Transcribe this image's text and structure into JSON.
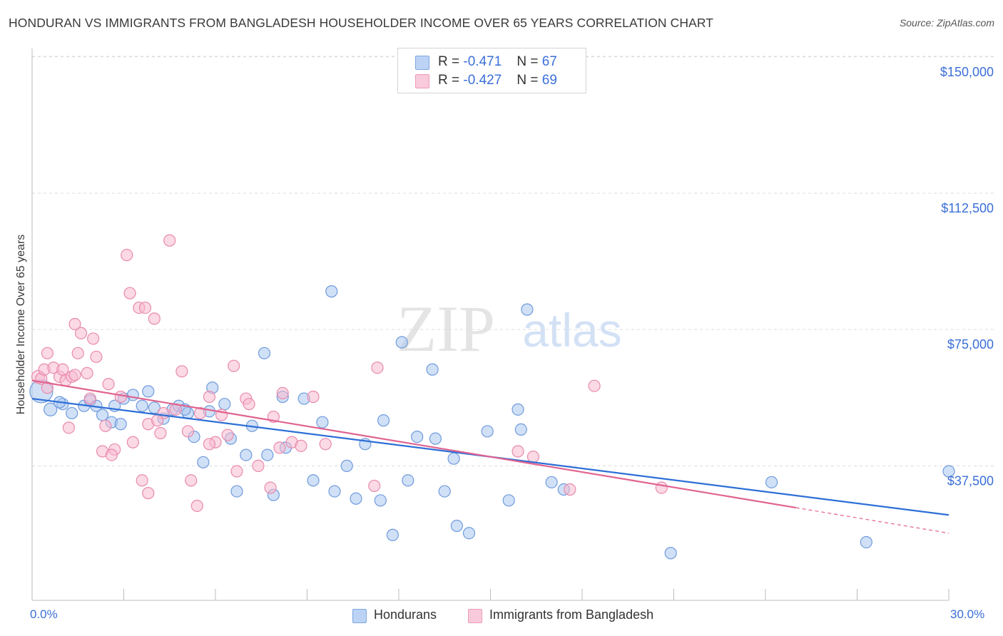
{
  "title": "HONDURAN VS IMMIGRANTS FROM BANGLADESH HOUSEHOLDER INCOME OVER 65 YEARS CORRELATION CHART",
  "source": "Source: ZipAtlas.com",
  "watermark": {
    "zip": "ZIP",
    "atlas": "atlas"
  },
  "colors": {
    "blue_fill": "#a9c6f0",
    "blue_stroke": "#6f9bdc",
    "blue_line": "#2d6fd6",
    "pink_fill": "#f7b9cf",
    "pink_stroke": "#e88aad",
    "pink_line": "#e0628f",
    "grid": "#dcdcdc",
    "tick_text": "#3a6fd8"
  },
  "legend": {
    "rows": [
      {
        "r_label": "R =",
        "r_value": "-0.471",
        "n_label": "N =",
        "n_value": "67"
      },
      {
        "r_label": "R =",
        "r_value": "-0.427",
        "n_label": "N =",
        "n_value": "69"
      }
    ]
  },
  "chart_data": {
    "type": "scatter",
    "title": "HONDURAN VS IMMIGRANTS FROM BANGLADESH HOUSEHOLDER INCOME OVER 65 YEARS CORRELATION CHART",
    "xlabel": "",
    "ylabel": "Householder Income Over 65 years",
    "xlim": [
      0,
      30
    ],
    "ylim": [
      6000,
      160000
    ],
    "x_tick_labels": [
      "0.0%",
      "30.0%"
    ],
    "y_ticks": [
      37500,
      75000,
      112500,
      150000
    ],
    "y_tick_labels": [
      "$37,500",
      "$75,000",
      "$112,500",
      "$150,000"
    ],
    "grid": true,
    "legend_position": "top-center",
    "series": [
      {
        "name": "Hondurans",
        "color": "#a9c6f0",
        "trend": {
          "x": [
            0,
            30
          ],
          "y": [
            56000,
            24000
          ]
        },
        "points": [
          [
            0.3,
            58000,
            16
          ],
          [
            0.6,
            53000,
            9
          ],
          [
            1.0,
            54500,
            8
          ],
          [
            1.3,
            52000,
            8
          ],
          [
            1.7,
            54000,
            8
          ],
          [
            1.9,
            55500,
            8
          ],
          [
            2.1,
            54000,
            8
          ],
          [
            2.3,
            51500,
            8
          ],
          [
            2.6,
            49500,
            8
          ],
          [
            2.9,
            49000,
            8
          ],
          [
            3.0,
            56000,
            8
          ],
          [
            3.3,
            57000,
            8
          ],
          [
            3.6,
            54000,
            8
          ],
          [
            3.8,
            58000,
            8
          ],
          [
            4.0,
            53500,
            8
          ],
          [
            4.3,
            50500,
            8
          ],
          [
            4.6,
            53000,
            8
          ],
          [
            4.8,
            54000,
            8
          ],
          [
            5.1,
            52000,
            8
          ],
          [
            5.3,
            45500,
            8
          ],
          [
            5.6,
            38500,
            8
          ],
          [
            5.8,
            52500,
            8
          ],
          [
            5.9,
            59000,
            8
          ],
          [
            6.3,
            54500,
            8
          ],
          [
            6.5,
            45000,
            8
          ],
          [
            6.7,
            30500,
            8
          ],
          [
            7.0,
            40500,
            8
          ],
          [
            7.2,
            48500,
            8
          ],
          [
            7.6,
            68500,
            8
          ],
          [
            7.7,
            40500,
            8
          ],
          [
            7.9,
            29500,
            8
          ],
          [
            8.2,
            56500,
            8
          ],
          [
            8.3,
            42500,
            8
          ],
          [
            8.9,
            56000,
            8
          ],
          [
            9.2,
            33500,
            8
          ],
          [
            9.5,
            49500,
            8
          ],
          [
            9.8,
            85500,
            8
          ],
          [
            9.9,
            30500,
            8
          ],
          [
            10.3,
            37500,
            8
          ],
          [
            10.6,
            28500,
            8
          ],
          [
            10.9,
            43500,
            8
          ],
          [
            11.4,
            28000,
            8
          ],
          [
            11.5,
            50000,
            8
          ],
          [
            11.8,
            18500,
            8
          ],
          [
            12.1,
            71500,
            8
          ],
          [
            12.3,
            33500,
            8
          ],
          [
            12.6,
            45500,
            8
          ],
          [
            13.1,
            64000,
            8
          ],
          [
            13.2,
            45000,
            8
          ],
          [
            13.5,
            30500,
            8
          ],
          [
            13.8,
            39500,
            8
          ],
          [
            13.9,
            21000,
            8
          ],
          [
            14.3,
            19000,
            8
          ],
          [
            14.9,
            47000,
            8
          ],
          [
            15.6,
            28000,
            8
          ],
          [
            15.9,
            53000,
            8
          ],
          [
            16.0,
            47500,
            8
          ],
          [
            16.2,
            80500,
            8
          ],
          [
            17.0,
            33000,
            8
          ],
          [
            17.4,
            31000,
            8
          ],
          [
            20.9,
            13500,
            8
          ],
          [
            24.2,
            33000,
            8
          ],
          [
            27.3,
            16500,
            8
          ],
          [
            30.0,
            36000,
            8
          ],
          [
            0.9,
            55000,
            8
          ],
          [
            2.7,
            54000,
            8
          ],
          [
            5.0,
            53000,
            8
          ]
        ]
      },
      {
        "name": "Immigrants from Bangladesh",
        "color": "#f7b9cf",
        "trend": {
          "x": [
            0,
            25
          ],
          "y": [
            61000,
            26000
          ]
        },
        "trend_dashed": {
          "x": [
            25,
            30
          ],
          "y": [
            26000,
            19000
          ]
        },
        "points": [
          [
            0.2,
            62000,
            9
          ],
          [
            0.3,
            61500,
            8
          ],
          [
            0.4,
            64000,
            8
          ],
          [
            0.5,
            68500,
            8
          ],
          [
            0.5,
            59000,
            8
          ],
          [
            0.7,
            64500,
            8
          ],
          [
            0.9,
            62000,
            8
          ],
          [
            1.0,
            64000,
            8
          ],
          [
            1.1,
            61000,
            8
          ],
          [
            1.2,
            48000,
            8
          ],
          [
            1.3,
            62000,
            8
          ],
          [
            1.4,
            62500,
            8
          ],
          [
            1.4,
            76500,
            8
          ],
          [
            1.5,
            68500,
            8
          ],
          [
            1.6,
            74000,
            8
          ],
          [
            1.8,
            63000,
            8
          ],
          [
            1.9,
            56000,
            8
          ],
          [
            2.0,
            72500,
            8
          ],
          [
            2.1,
            67500,
            8
          ],
          [
            2.3,
            41500,
            8
          ],
          [
            2.4,
            48500,
            8
          ],
          [
            2.5,
            60000,
            8
          ],
          [
            2.7,
            42000,
            8
          ],
          [
            2.9,
            56500,
            8
          ],
          [
            3.1,
            95500,
            8
          ],
          [
            3.2,
            85000,
            8
          ],
          [
            3.3,
            44000,
            8
          ],
          [
            3.5,
            81000,
            8
          ],
          [
            3.6,
            33500,
            8
          ],
          [
            3.7,
            81000,
            8
          ],
          [
            3.8,
            30000,
            8
          ],
          [
            3.8,
            49000,
            8
          ],
          [
            4.0,
            78000,
            8
          ],
          [
            4.2,
            46500,
            8
          ],
          [
            4.3,
            52000,
            8
          ],
          [
            4.5,
            99500,
            8
          ],
          [
            4.7,
            53000,
            8
          ],
          [
            4.9,
            63500,
            8
          ],
          [
            5.1,
            47000,
            8
          ],
          [
            5.2,
            33500,
            8
          ],
          [
            5.4,
            26500,
            8
          ],
          [
            5.5,
            52000,
            8
          ],
          [
            5.8,
            56500,
            8
          ],
          [
            6.0,
            44000,
            8
          ],
          [
            6.2,
            51500,
            8
          ],
          [
            6.4,
            46000,
            8
          ],
          [
            6.6,
            65000,
            8
          ],
          [
            6.7,
            36000,
            8
          ],
          [
            7.0,
            56000,
            8
          ],
          [
            7.1,
            54500,
            8
          ],
          [
            7.4,
            37500,
            8
          ],
          [
            7.8,
            31500,
            8
          ],
          [
            7.9,
            51000,
            8
          ],
          [
            8.1,
            42500,
            8
          ],
          [
            8.2,
            57500,
            8
          ],
          [
            8.5,
            44000,
            8
          ],
          [
            8.8,
            43000,
            8
          ],
          [
            9.2,
            56500,
            8
          ],
          [
            9.6,
            43500,
            8
          ],
          [
            11.2,
            32000,
            8
          ],
          [
            11.3,
            64500,
            8
          ],
          [
            15.9,
            41500,
            8
          ],
          [
            16.4,
            40000,
            8
          ],
          [
            17.6,
            31000,
            8
          ],
          [
            18.4,
            59500,
            8
          ],
          [
            20.6,
            31500,
            8
          ],
          [
            2.6,
            40500,
            8
          ],
          [
            4.1,
            50000,
            8
          ],
          [
            5.8,
            43500,
            8
          ]
        ]
      }
    ]
  },
  "bottom_legend": {
    "items": [
      "Hondurans",
      "Immigrants from Bangladesh"
    ]
  }
}
